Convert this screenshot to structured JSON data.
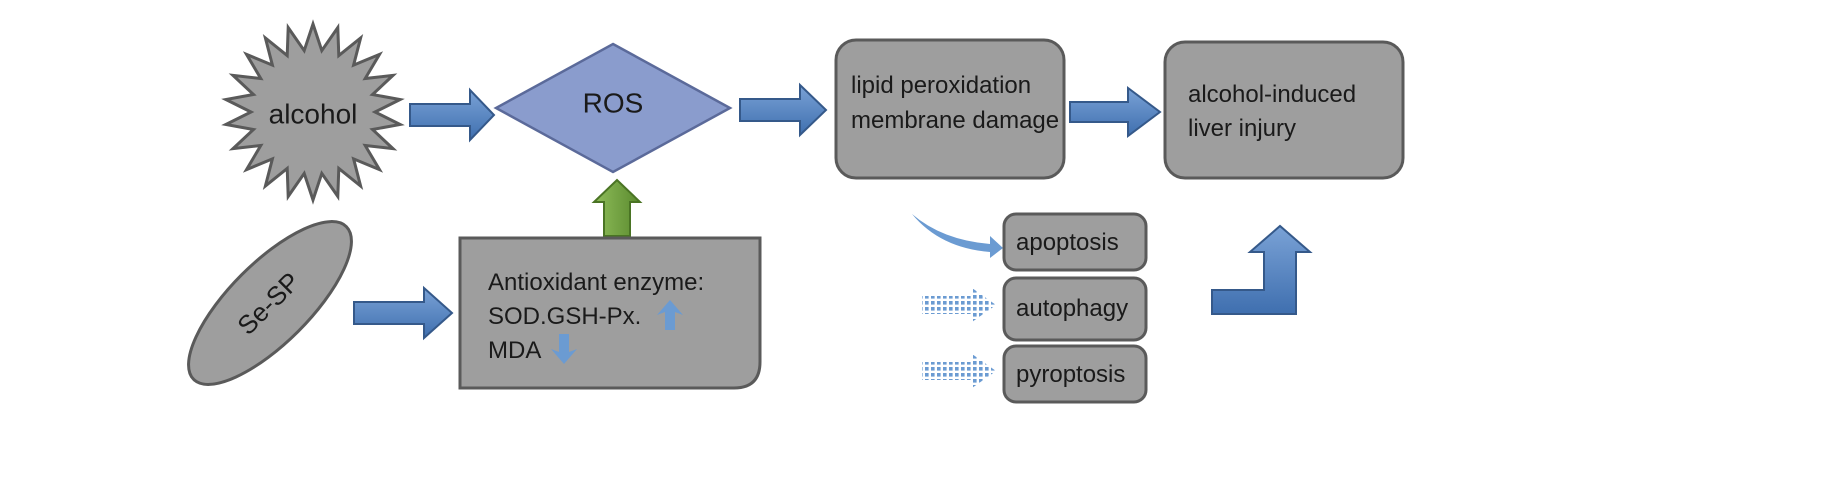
{
  "nodes": {
    "alcohol": "alcohol",
    "ros": "ROS",
    "lipid_line1": "lipid peroxidation",
    "lipid_line2": "membrane damage",
    "injury_line1": "alcohol-induced",
    "injury_line2": "liver injury",
    "sesp": "Se-SP",
    "enzyme_line1": "Antioxidant enzyme:",
    "enzyme_line2": "SOD.GSH-Px.",
    "enzyme_line3": "MDA",
    "apoptosis": "apoptosis",
    "autophagy": "autophagy",
    "pyroptosis": "pyroptosis"
  },
  "colors": {
    "box_fill": "#9e9e9e",
    "box_stroke": "#5a5a5a",
    "diamond_fill": "#8a9ccd",
    "diamond_stroke": "#5b6a9a",
    "arrow_blue": "#4f80bd",
    "arrow_blue_stroke": "#35598a",
    "arrow_green": "#6e9e3c",
    "arrow_light_blue": "#6b9bd2"
  },
  "icons": {
    "up": "up-arrow-icon",
    "down": "down-arrow-icon"
  }
}
